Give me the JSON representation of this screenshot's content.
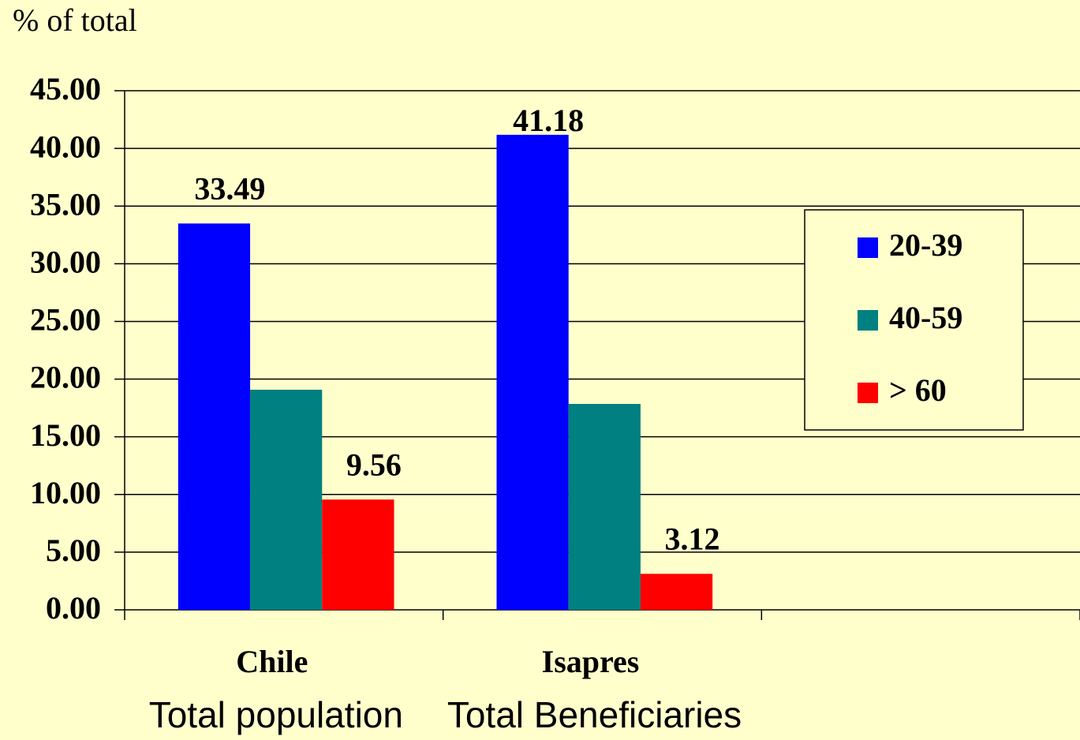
{
  "chart_data": {
    "type": "bar",
    "y_label": "% of total",
    "categories": [
      "Chile",
      "Isapres",
      null
    ],
    "annotations": [
      "Total population",
      "Total Beneficiaries"
    ],
    "series": [
      {
        "name": "20-39",
        "color": "#0000ff",
        "values": [
          33.49,
          41.18,
          null
        ],
        "value_labels": [
          "33.49",
          "41.18",
          null
        ]
      },
      {
        "name": "40-59",
        "color": "#008080",
        "values": [
          19.08,
          17.85,
          null
        ],
        "value_labels": [
          null,
          null,
          null
        ]
      },
      {
        "name": "> 60",
        "color": "#ff0000",
        "values": [
          9.56,
          3.12,
          null
        ],
        "value_labels": [
          "9.56",
          "3.12",
          null
        ]
      }
    ],
    "ylim": [
      0,
      45
    ],
    "yticks": [
      {
        "value": 0,
        "label": "0.00"
      },
      {
        "value": 5,
        "label": "5.00"
      },
      {
        "value": 10,
        "label": "10.00"
      },
      {
        "value": 15,
        "label": "15.00"
      },
      {
        "value": 20,
        "label": "20.00"
      },
      {
        "value": 25,
        "label": "25.00"
      },
      {
        "value": 30,
        "label": "30.00"
      },
      {
        "value": 35,
        "label": "35.00"
      },
      {
        "value": 40,
        "label": "40.00"
      },
      {
        "value": 45,
        "label": "45.00"
      }
    ],
    "grid": true,
    "legend": "right"
  }
}
